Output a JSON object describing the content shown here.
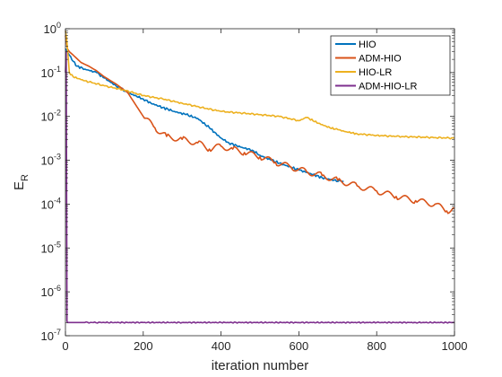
{
  "chart_data": {
    "type": "line",
    "xlabel": "iteration number",
    "ylabel_main": "E",
    "ylabel_sub": "R",
    "xlim": [
      0,
      1000
    ],
    "ylim": [
      1e-07,
      1
    ],
    "yscale": "log",
    "grid": false,
    "legend_position": "top-right",
    "x_ticks": [
      0,
      200,
      400,
      600,
      800,
      1000
    ],
    "y_ticks": [
      {
        "value": 1,
        "base": "10",
        "exp": "0"
      },
      {
        "value": 0.1,
        "base": "10",
        "exp": "-1"
      },
      {
        "value": 0.01,
        "base": "10",
        "exp": "-2"
      },
      {
        "value": 0.001,
        "base": "10",
        "exp": "-3"
      },
      {
        "value": 0.0001,
        "base": "10",
        "exp": "-4"
      },
      {
        "value": 1e-05,
        "base": "10",
        "exp": "-5"
      },
      {
        "value": 1e-06,
        "base": "10",
        "exp": "-6"
      },
      {
        "value": 1e-07,
        "base": "10",
        "exp": "-7"
      }
    ],
    "series": [
      {
        "name": "HIO",
        "color": "#0072BD",
        "x": [
          0,
          5,
          10,
          20,
          30,
          50,
          80,
          100,
          130,
          160,
          200,
          220,
          250,
          280,
          310,
          340,
          370,
          400,
          420,
          450,
          480,
          500,
          530,
          560,
          600,
          630,
          660,
          690,
          715
        ],
        "y": [
          0.35,
          0.3,
          0.25,
          0.18,
          0.14,
          0.12,
          0.1,
          0.075,
          0.05,
          0.035,
          0.025,
          0.02,
          0.016,
          0.013,
          0.011,
          0.009,
          0.0055,
          0.0032,
          0.0025,
          0.002,
          0.0017,
          0.0013,
          0.001,
          0.0008,
          0.0006,
          0.0005,
          0.0004,
          0.00035,
          0.00033
        ]
      },
      {
        "name": "ADM-HIO",
        "color": "#D95319",
        "x": [
          0,
          5,
          10,
          20,
          40,
          60,
          80,
          100,
          130,
          160,
          200,
          230,
          260,
          300,
          340,
          370,
          400,
          430,
          460,
          500,
          540,
          580,
          620,
          660,
          700,
          750,
          800,
          850,
          900,
          950,
          980,
          1000
        ],
        "y": [
          0.7,
          0.35,
          0.3,
          0.25,
          0.17,
          0.14,
          0.11,
          0.08,
          0.055,
          0.035,
          0.01,
          0.0055,
          0.0035,
          0.003,
          0.0025,
          0.0018,
          0.0021,
          0.0018,
          0.0015,
          0.0012,
          0.0009,
          0.0007,
          0.00055,
          0.00045,
          0.00035,
          0.00026,
          0.0002,
          0.00015,
          0.00012,
          0.0001,
          7e-05,
          8e-05
        ]
      },
      {
        "name": "HIO-LR",
        "color": "#EDB120",
        "x": [
          0,
          3,
          6,
          10,
          20,
          50,
          100,
          150,
          200,
          250,
          300,
          350,
          400,
          450,
          500,
          550,
          600,
          620,
          650,
          680,
          700,
          720,
          750,
          800,
          850,
          900,
          950,
          1000
        ],
        "y": [
          0.9,
          0.6,
          0.3,
          0.1,
          0.08,
          0.065,
          0.05,
          0.04,
          0.03,
          0.025,
          0.02,
          0.016,
          0.013,
          0.012,
          0.011,
          0.01,
          0.008,
          0.0095,
          0.007,
          0.0055,
          0.005,
          0.0045,
          0.004,
          0.0037,
          0.0035,
          0.0034,
          0.0033,
          0.0032
        ]
      },
      {
        "name": "ADM-HIO-LR",
        "color": "#7E2F8E",
        "x": [
          0,
          2,
          4,
          5,
          50,
          100,
          200,
          300,
          400,
          500,
          600,
          700,
          800,
          900,
          1000
        ],
        "y": [
          0.1,
          0.3,
          2.2e-07,
          2e-07,
          2e-07,
          2e-07,
          2e-07,
          2e-07,
          2e-07,
          2e-07,
          2e-07,
          2e-07,
          2e-07,
          2e-07,
          2e-07
        ]
      }
    ]
  }
}
